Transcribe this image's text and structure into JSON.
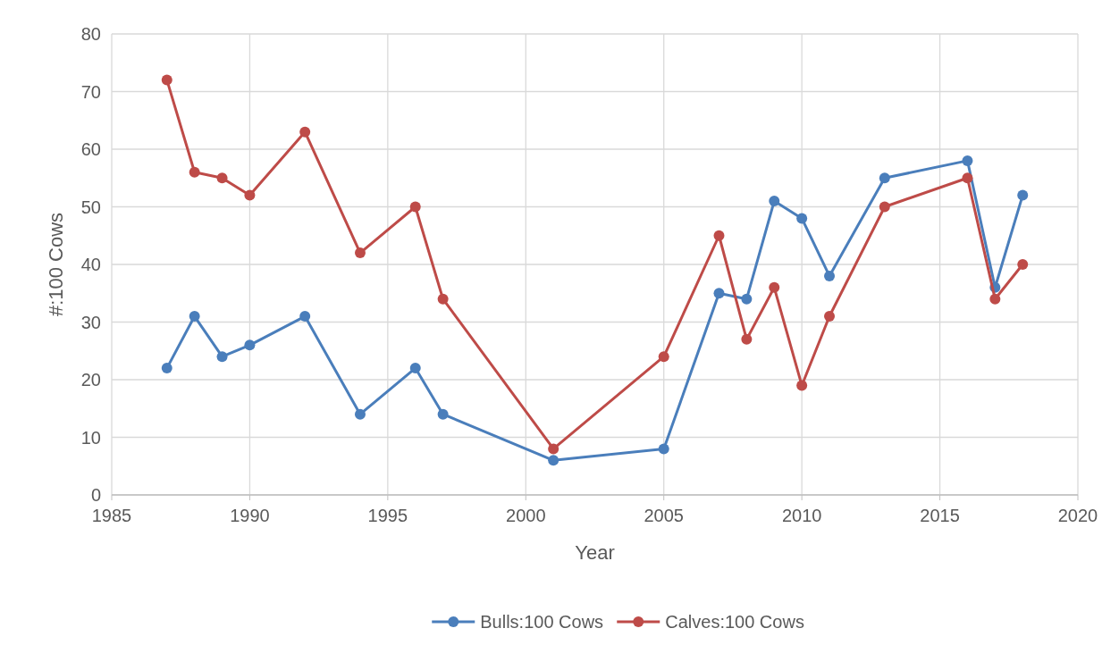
{
  "chart_data": {
    "type": "line",
    "xlabel": "Year",
    "ylabel": "#:100 Cows",
    "x": [
      1987,
      1988,
      1989,
      1990,
      1992,
      1994,
      1996,
      1997,
      2001,
      2005,
      2007,
      2008,
      2009,
      2010,
      2011,
      2013,
      2016,
      2017,
      2018
    ],
    "series": [
      {
        "name": "Bulls:100 Cows",
        "color": "#4a7ebb",
        "values": [
          22,
          31,
          24,
          26,
          31,
          14,
          22,
          14,
          6,
          8,
          35,
          34,
          51,
          48,
          38,
          55,
          58,
          36,
          52
        ]
      },
      {
        "name": "Calves:100 Cows",
        "color": "#be4b48",
        "values": [
          72,
          56,
          55,
          52,
          63,
          42,
          50,
          34,
          8,
          24,
          45,
          27,
          36,
          19,
          31,
          50,
          55,
          34,
          40
        ]
      }
    ],
    "xlim": [
      1985,
      2020
    ],
    "xticks": [
      1985,
      1990,
      1995,
      2000,
      2005,
      2010,
      2015,
      2020
    ],
    "ylim": [
      0,
      80
    ],
    "yticks": [
      0,
      10,
      20,
      30,
      40,
      50,
      60,
      70,
      80
    ],
    "grid": true,
    "legend": "bottom",
    "marker": "circle",
    "line_style": "solid"
  }
}
